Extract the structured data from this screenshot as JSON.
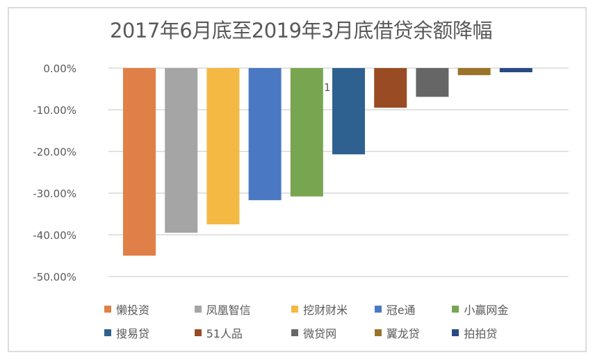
{
  "chart_data": {
    "type": "bar",
    "title": "2017年6月底至2019年3月底借贷余额降幅",
    "xlabel": "",
    "ylabel": "",
    "ylim": [
      -50,
      0
    ],
    "yticks": [
      0,
      -10,
      -20,
      -30,
      -40,
      -50
    ],
    "ytick_labels": [
      "0.00%",
      "-10.00%",
      "-20.00%",
      "-30.00%",
      "-40.00%",
      "-50.00%"
    ],
    "grid": true,
    "legend_position": "bottom",
    "annotation": "1",
    "series": [
      {
        "name": "懒投资",
        "value": -45.0,
        "color": "#E07F48"
      },
      {
        "name": "凤凰智信",
        "value": -39.5,
        "color": "#A5A5A5"
      },
      {
        "name": "挖财财米",
        "value": -37.5,
        "color": "#F4B942"
      },
      {
        "name": "冠e通",
        "value": -31.7,
        "color": "#4A78C2"
      },
      {
        "name": "小赢网金",
        "value": -30.8,
        "color": "#78A550"
      },
      {
        "name": "搜易贷",
        "value": -20.7,
        "color": "#2E618F"
      },
      {
        "name": "51人品",
        "value": -9.5,
        "color": "#994C24"
      },
      {
        "name": "微贷网",
        "value": -6.9,
        "color": "#666666"
      },
      {
        "name": "翼龙贷",
        "value": -1.7,
        "color": "#9A7429"
      },
      {
        "name": "拍拍贷",
        "value": -1.0,
        "color": "#284A85"
      }
    ]
  }
}
